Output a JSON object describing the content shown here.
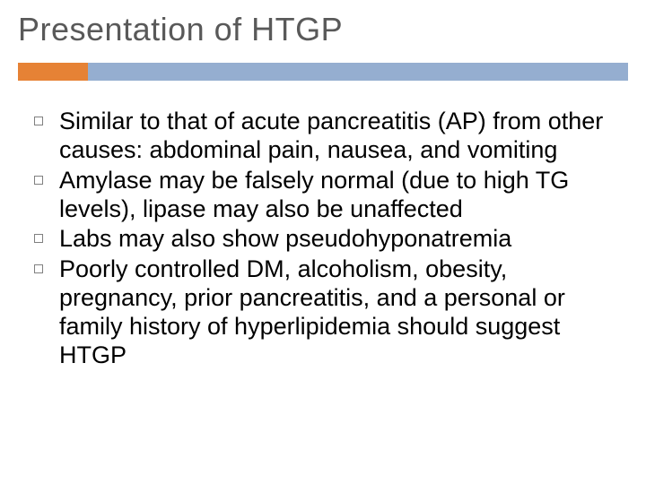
{
  "slide": {
    "title": "Presentation of HTGP",
    "title_color": "#595959",
    "title_fontsize": 36,
    "accent": {
      "long_color": "#95aed0",
      "short_color": "#e68235",
      "height": 20,
      "short_width": 78
    },
    "body_fontsize": 27,
    "body_color": "#000000",
    "bullet_marker": {
      "size": 10,
      "border_color": "#808080",
      "border_width": 1.5,
      "shape": "hollow-square"
    },
    "bullets": [
      "Similar to that of acute pancreatitis (AP) from other causes: abdominal pain, nausea, and vomiting",
      "Amylase may be falsely normal (due to high TG levels), lipase may also be unaffected",
      "Labs may also show pseudohyponatremia",
      "Poorly controlled DM, alcoholism, obesity, pregnancy, prior pancreatitis, and a personal or family history of hyperlipidemia should suggest HTGP"
    ],
    "background_color": "#ffffff"
  }
}
